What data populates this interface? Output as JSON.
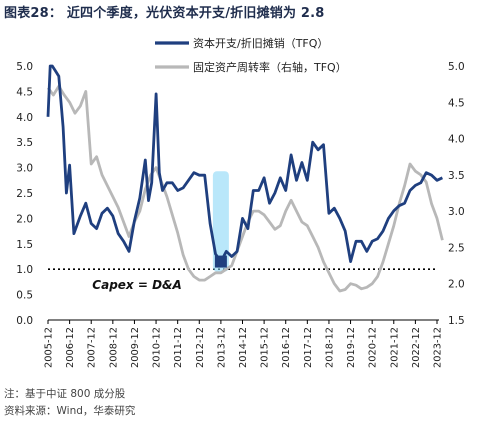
{
  "title": "图表28：  近四个季度，光伏资本开支/折旧摊销为 2.8",
  "footnote": "注：基于中证 800 成分股",
  "source": "资料来源：Wind，华泰研究",
  "colors": {
    "capex": "#1f3f7f",
    "turnover": "#b8b8b8",
    "highlight": "#7fd3f5",
    "marker": "#1f3f7f"
  },
  "chart_data": {
    "type": "line",
    "x": [
      "2005-12",
      "2006-12",
      "2007-12",
      "2008-12",
      "2009-12",
      "2010-12",
      "2011-12",
      "2012-12",
      "2013-12",
      "2014-12",
      "2015-12",
      "2016-12",
      "2017-12",
      "2018-12",
      "2019-12",
      "2020-12",
      "2021-12",
      "2022-12",
      "2023-12"
    ],
    "left_axis": {
      "ylim": [
        0.0,
        5.0
      ],
      "ticks": [
        "0.0",
        "0.5",
        "1.0",
        "1.5",
        "2.0",
        "2.5",
        "3.0",
        "3.5",
        "4.0",
        "4.5",
        "5.0"
      ]
    },
    "right_axis": {
      "ylim": [
        1.5,
        5.0
      ],
      "ticks": [
        "1.5",
        "2.0",
        "2.5",
        "3.0",
        "3.5",
        "4.0",
        "4.5",
        "5.0"
      ]
    },
    "reference_line": {
      "axis": "left",
      "value": 1.0
    },
    "annotation": "Capex = D&A",
    "highlight_point": {
      "x_index": 8.0,
      "value": 1.15
    },
    "series": [
      {
        "name": "资本开支/折旧摊销（TFQ）",
        "axis": "left",
        "points": [
          [
            0.0,
            4.0
          ],
          [
            0.1,
            5.0
          ],
          [
            0.2,
            5.0
          ],
          [
            0.35,
            4.9
          ],
          [
            0.5,
            4.8
          ],
          [
            0.7,
            3.8
          ],
          [
            0.85,
            2.5
          ],
          [
            1.0,
            3.05
          ],
          [
            1.2,
            1.7
          ],
          [
            1.5,
            2.05
          ],
          [
            1.75,
            2.3
          ],
          [
            2.0,
            1.9
          ],
          [
            2.25,
            1.8
          ],
          [
            2.5,
            2.1
          ],
          [
            2.75,
            2.2
          ],
          [
            3.0,
            2.05
          ],
          [
            3.25,
            1.7
          ],
          [
            3.5,
            1.55
          ],
          [
            3.75,
            1.35
          ],
          [
            4.0,
            1.95
          ],
          [
            4.25,
            2.4
          ],
          [
            4.5,
            3.15
          ],
          [
            4.65,
            2.35
          ],
          [
            4.8,
            2.7
          ],
          [
            5.0,
            4.45
          ],
          [
            5.15,
            2.9
          ],
          [
            5.3,
            2.55
          ],
          [
            5.5,
            2.7
          ],
          [
            5.75,
            2.7
          ],
          [
            6.0,
            2.55
          ],
          [
            6.25,
            2.6
          ],
          [
            6.5,
            2.75
          ],
          [
            6.75,
            2.9
          ],
          [
            7.0,
            2.85
          ],
          [
            7.25,
            2.85
          ],
          [
            7.5,
            1.9
          ],
          [
            7.75,
            1.3
          ],
          [
            8.0,
            1.15
          ],
          [
            8.25,
            1.35
          ],
          [
            8.5,
            1.25
          ],
          [
            8.75,
            1.35
          ],
          [
            9.0,
            2.0
          ],
          [
            9.25,
            1.8
          ],
          [
            9.5,
            2.55
          ],
          [
            9.75,
            2.55
          ],
          [
            10.0,
            2.8
          ],
          [
            10.25,
            2.3
          ],
          [
            10.5,
            2.5
          ],
          [
            10.75,
            2.8
          ],
          [
            11.0,
            2.55
          ],
          [
            11.25,
            3.25
          ],
          [
            11.5,
            2.75
          ],
          [
            11.75,
            3.1
          ],
          [
            12.0,
            2.75
          ],
          [
            12.25,
            3.5
          ],
          [
            12.5,
            3.35
          ],
          [
            12.75,
            3.45
          ],
          [
            13.0,
            2.1
          ],
          [
            13.25,
            2.2
          ],
          [
            13.5,
            2.0
          ],
          [
            13.75,
            1.75
          ],
          [
            14.0,
            1.15
          ],
          [
            14.25,
            1.55
          ],
          [
            14.5,
            1.55
          ],
          [
            14.75,
            1.35
          ],
          [
            15.0,
            1.55
          ],
          [
            15.25,
            1.6
          ],
          [
            15.5,
            1.75
          ],
          [
            15.75,
            2.0
          ],
          [
            16.0,
            2.15
          ],
          [
            16.25,
            2.25
          ],
          [
            16.5,
            2.3
          ],
          [
            16.75,
            2.55
          ],
          [
            17.0,
            2.65
          ],
          [
            17.25,
            2.7
          ],
          [
            17.5,
            2.9
          ],
          [
            17.75,
            2.85
          ],
          [
            18.0,
            2.75
          ],
          [
            18.25,
            2.8
          ]
        ]
      },
      {
        "name": "固定资产周转率（右轴，TFQ）",
        "axis": "right",
        "points": [
          [
            0.0,
            4.7
          ],
          [
            0.25,
            4.6
          ],
          [
            0.5,
            4.72
          ],
          [
            0.75,
            4.6
          ],
          [
            1.0,
            4.5
          ],
          [
            1.25,
            4.35
          ],
          [
            1.5,
            4.45
          ],
          [
            1.75,
            4.65
          ],
          [
            2.0,
            3.65
          ],
          [
            2.25,
            3.75
          ],
          [
            2.5,
            3.5
          ],
          [
            2.75,
            3.35
          ],
          [
            3.0,
            3.2
          ],
          [
            3.25,
            3.05
          ],
          [
            3.5,
            2.85
          ],
          [
            3.75,
            2.65
          ],
          [
            4.0,
            2.85
          ],
          [
            4.25,
            3.0
          ],
          [
            4.5,
            3.3
          ],
          [
            4.75,
            3.5
          ],
          [
            5.0,
            3.6
          ],
          [
            5.25,
            3.4
          ],
          [
            5.5,
            3.2
          ],
          [
            5.75,
            2.95
          ],
          [
            6.0,
            2.7
          ],
          [
            6.25,
            2.4
          ],
          [
            6.5,
            2.2
          ],
          [
            6.75,
            2.1
          ],
          [
            7.0,
            2.05
          ],
          [
            7.25,
            2.05
          ],
          [
            7.5,
            2.1
          ],
          [
            7.75,
            2.15
          ],
          [
            8.0,
            2.15
          ],
          [
            8.25,
            2.2
          ],
          [
            8.5,
            2.25
          ],
          [
            8.75,
            2.45
          ],
          [
            9.0,
            2.65
          ],
          [
            9.25,
            2.85
          ],
          [
            9.5,
            3.0
          ],
          [
            9.75,
            3.0
          ],
          [
            10.0,
            2.95
          ],
          [
            10.25,
            2.85
          ],
          [
            10.5,
            2.75
          ],
          [
            10.75,
            2.8
          ],
          [
            11.0,
            3.0
          ],
          [
            11.25,
            3.15
          ],
          [
            11.5,
            3.0
          ],
          [
            11.75,
            2.85
          ],
          [
            12.0,
            2.8
          ],
          [
            12.25,
            2.65
          ],
          [
            12.5,
            2.5
          ],
          [
            12.75,
            2.3
          ],
          [
            13.0,
            2.15
          ],
          [
            13.25,
            2.0
          ],
          [
            13.5,
            1.9
          ],
          [
            13.75,
            1.92
          ],
          [
            14.0,
            2.0
          ],
          [
            14.25,
            1.98
          ],
          [
            14.5,
            1.93
          ],
          [
            14.75,
            1.95
          ],
          [
            15.0,
            2.0
          ],
          [
            15.25,
            2.1
          ],
          [
            15.5,
            2.3
          ],
          [
            15.75,
            2.55
          ],
          [
            16.0,
            2.8
          ],
          [
            16.25,
            3.1
          ],
          [
            16.5,
            3.35
          ],
          [
            16.75,
            3.65
          ],
          [
            17.0,
            3.55
          ],
          [
            17.25,
            3.5
          ],
          [
            17.5,
            3.4
          ],
          [
            17.75,
            3.1
          ],
          [
            18.0,
            2.9
          ],
          [
            18.25,
            2.6
          ]
        ]
      }
    ]
  }
}
